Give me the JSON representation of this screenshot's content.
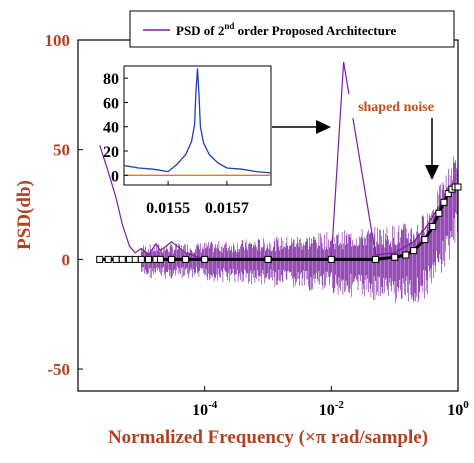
{
  "chart_data": {
    "type": "line",
    "xlabel": "Normalized Frequency (×π rad/sample)",
    "ylabel": "PSD(db)",
    "xscale": "log",
    "xlim": [
      1e-06,
      1
    ],
    "ylim": [
      -60,
      100
    ],
    "xticks": [
      {
        "value": 0.0001,
        "base": "10",
        "exp": "-4"
      },
      {
        "value": 0.01,
        "base": "10",
        "exp": "-2"
      },
      {
        "value": 1,
        "base": "10",
        "exp": "0"
      }
    ],
    "yticks": [
      -50,
      0,
      50,
      100
    ],
    "legend": {
      "placement": "top-right",
      "text_before": "PSD of 2",
      "superscript": "nd",
      "text_after": " order Proposed Architecture",
      "color": "#7b1fa2"
    },
    "series": [
      {
        "color": "#7b1fa2",
        "x": [
          2.2e-06,
          3e-06,
          4e-06,
          5e-06,
          6.5e-06,
          8e-06,
          1e-05,
          1.3e-05,
          1.7e-05,
          2e-05,
          3e-05,
          5e-05,
          0.0001,
          0.0003,
          0.001,
          0.003,
          0.01,
          0.0156,
          0.05,
          0.1,
          0.2,
          0.3,
          0.5,
          0.7,
          1
        ],
        "y": [
          52,
          40,
          28,
          16,
          6,
          3,
          5,
          2,
          7,
          4,
          8,
          3,
          0,
          0,
          0,
          0,
          0,
          90,
          2,
          3,
          8,
          14,
          24,
          30,
          33
        ],
        "noise_band": {
          "x_start": 1e-05,
          "x_end": 1,
          "spread_low": -25,
          "spread_high": 20
        }
      },
      {
        "color": "#000000",
        "marker": "square",
        "x": [
          2.2e-06,
          3e-06,
          4e-06,
          5e-06,
          6.5e-06,
          8e-06,
          1e-05,
          1.3e-05,
          1.7e-05,
          2e-05,
          3e-05,
          5e-05,
          0.0001,
          0.001,
          0.01,
          0.05,
          0.1,
          0.15,
          0.2,
          0.3,
          0.4,
          0.5,
          0.6,
          0.7,
          0.8,
          0.9,
          1
        ],
        "y": [
          0,
          0,
          0,
          0,
          0,
          0,
          0,
          0,
          0,
          0,
          0,
          0,
          0,
          0,
          0,
          0,
          1,
          2,
          4,
          9,
          15,
          21,
          26,
          30,
          32,
          33,
          33
        ]
      }
    ],
    "annotations": [
      {
        "text": "shaped noise",
        "x": 0.3,
        "y": 58,
        "color": "#c0501a"
      }
    ],
    "inset": {
      "xlim": [
        0.01535,
        0.01585
      ],
      "ylim": [
        -8,
        90
      ],
      "xticks": [
        "0.0155",
        "0.0157"
      ],
      "yticks": [
        0,
        20,
        40,
        60,
        80
      ],
      "series": [
        {
          "color": "#1f3fb3",
          "x": [
            0.01535,
            0.0154,
            0.01545,
            0.0155,
            0.01553,
            0.01556,
            0.01558,
            0.01559,
            0.015595,
            0.0156,
            0.015605,
            0.01561,
            0.01562,
            0.01564,
            0.01567,
            0.0157,
            0.01575,
            0.0158,
            0.01585
          ],
          "y": [
            8,
            6,
            5,
            3,
            9,
            17,
            28,
            42,
            70,
            88,
            66,
            40,
            27,
            17,
            10,
            6,
            5,
            3,
            2
          ]
        },
        {
          "color": "#e07b20",
          "x": [
            0.01535,
            0.01585
          ],
          "y": [
            0,
            0
          ]
        }
      ]
    }
  }
}
